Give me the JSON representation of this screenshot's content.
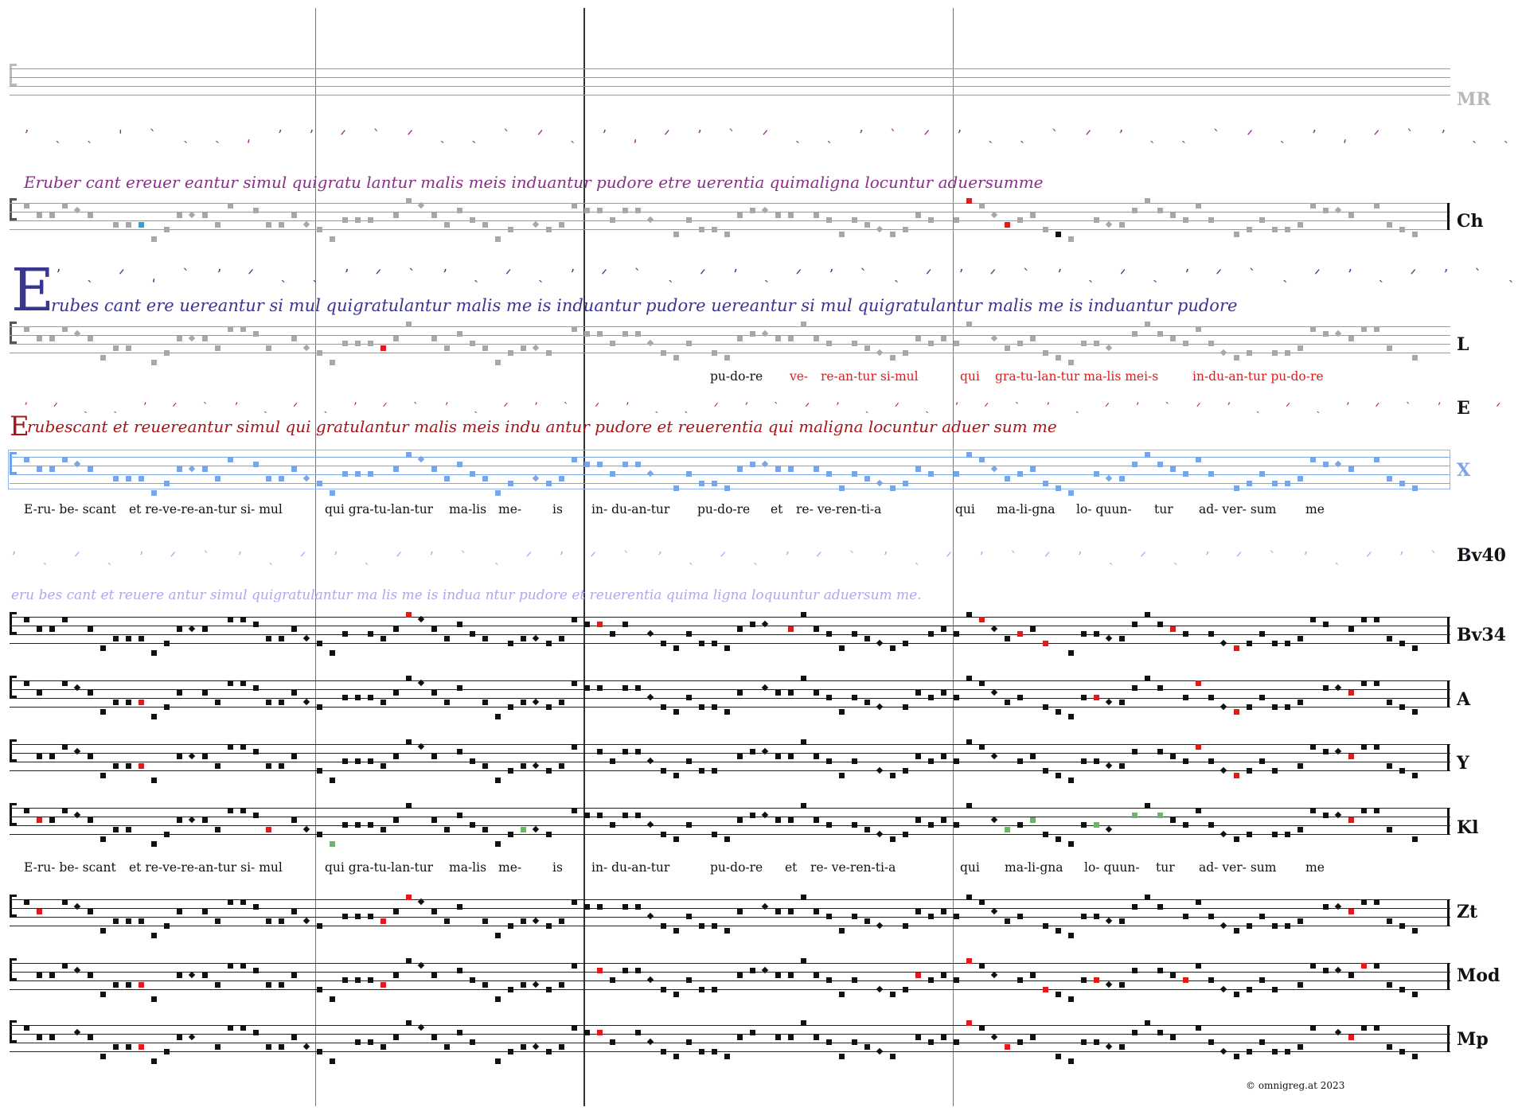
{
  "sigla": {
    "mr": "MR",
    "ch": "Ch",
    "l": "L",
    "e": "E",
    "x": "X",
    "bv40": "Bv40",
    "bv34": "Bv34",
    "a": "A",
    "y": "Y",
    "kl": "Kl",
    "zt": "Zt",
    "mod": "Mod",
    "mp": "Mp"
  },
  "manuscripts": {
    "ch_text": "Eruber cant ereuer eantur simul quigratu lantur malis meis induantur pudore etre   uerentia quimaligna locuntur aduersumme",
    "l_initial": "E",
    "l_text": "rubes cant ere uereantur si mul quigratulantur malis me is induantur pudore  uereantur si mul quigratulantur malis me is induantur pudore",
    "e_initial": "E",
    "e_text": "rubescant et reuereantur simul   qui gratulantur malis meis   indu antur pudore et reuerentia   qui maligna locuntur   aduer sum me",
    "bv40_text": "eru bes cant et reuere antur simul quigratulantur ma   lis me is indua ntur pudore et reuerentia   quima   ligna loquuntur aduersum me."
  },
  "l_lyrics": [
    {
      "text": "pu-do-re",
      "color": "#111111"
    },
    {
      "text": "ve-",
      "color": "#e41a1a"
    },
    {
      "text": "re-an-tur si-mul",
      "color": "#e41a1a"
    },
    {
      "text": "qui",
      "color": "#e41a1a"
    },
    {
      "text": "gra-tu-lan-tur ma-lis mei-s",
      "color": "#e41a1a"
    },
    {
      "text": "in-du-an-tur pu-do-re",
      "color": "#e41a1a"
    }
  ],
  "lyrics": [
    "E-ru- be- scant",
    "et re-ve-re-an-tur si- mul",
    "qui gra-tu-lan-tur",
    "ma-lis",
    "me-",
    "is",
    "in- du-an-tur",
    "pu-do-re",
    "et",
    "re- ve-ren-ti-a",
    "qui",
    "ma-li-gna",
    "lo- quun-",
    "tur",
    "ad- ver- sum",
    "me"
  ],
  "lyrics_kl": [
    "E-ru- be- scant",
    "et re-ve-re-an-tur si- mul",
    "qui gra-tu-lan-tur",
    "ma-lis",
    "me-",
    "is",
    "in- du-an-tur",
    "pu-do-re",
    "et",
    "re- ve-ren-ti-a",
    "qui",
    "ma-li-gna",
    "lo- quun-",
    "tur",
    "ad- ver- sum",
    "me"
  ],
  "copyright": "©  omnigreg.at   2023",
  "colors": {
    "black": "#111111",
    "red": "#e41a1a",
    "grey": "#a8a8a8",
    "blue": "#7aa6e6",
    "green": "#6db36d",
    "cyan": "#3aa0c8",
    "purple": "#8a2f8a",
    "indigo": "#3a3590",
    "darkred": "#a4161a",
    "lavender": "#b7a3ee"
  }
}
